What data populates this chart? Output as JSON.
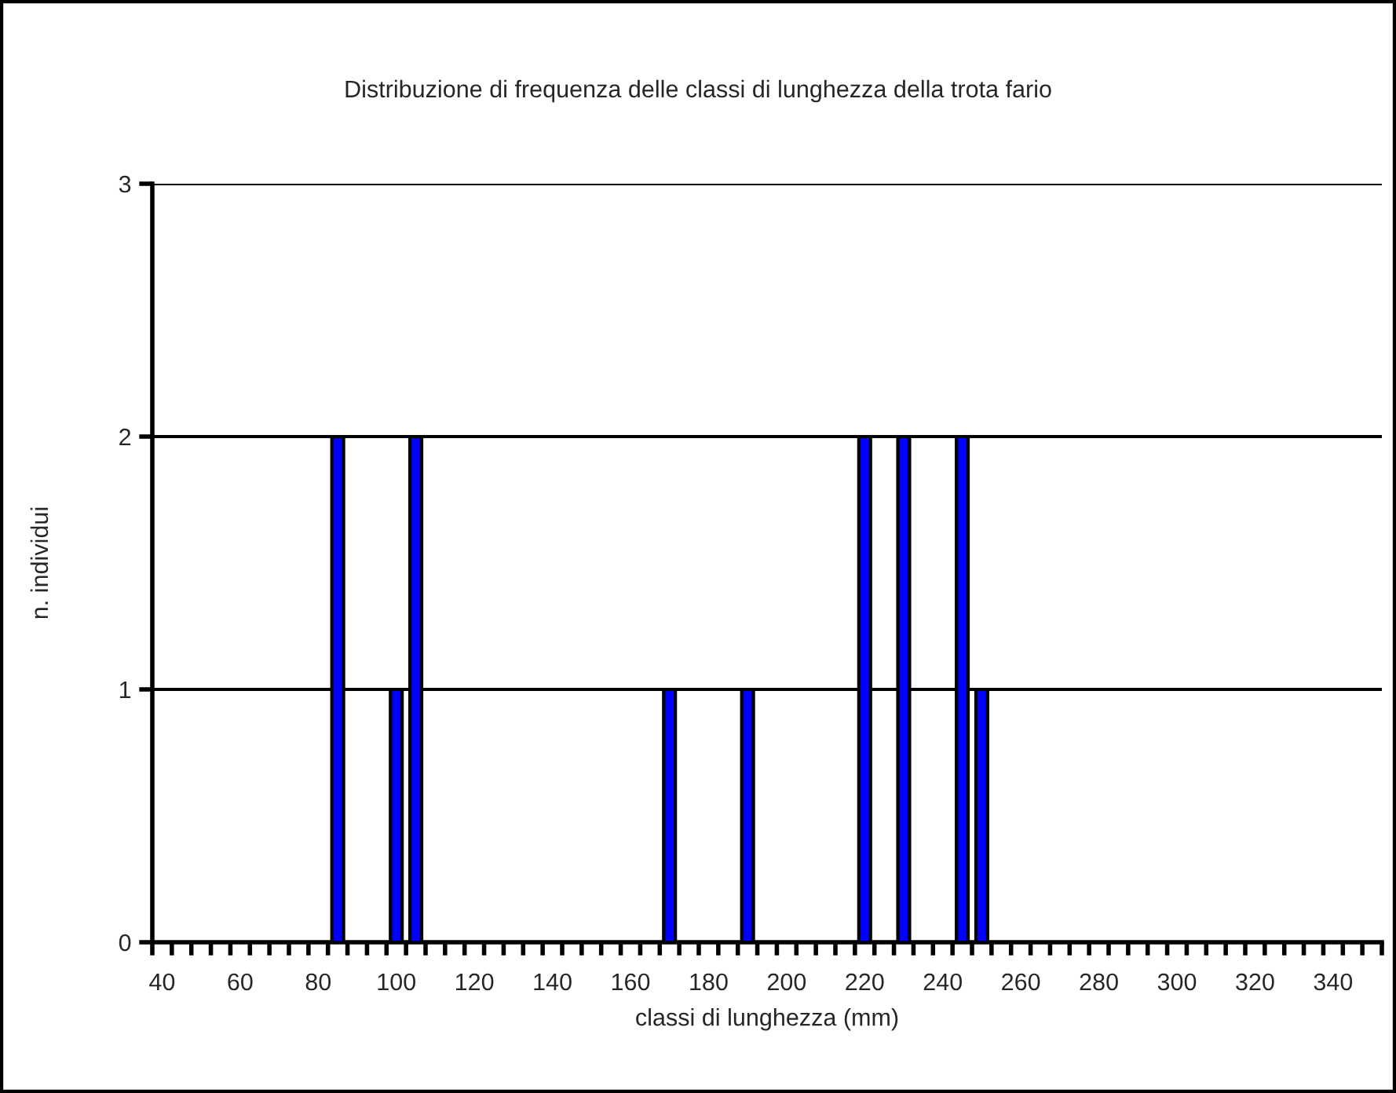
{
  "chart_data": {
    "type": "bar",
    "title": "Distribuzione di frequenza delle classi di lunghezza della trota fario",
    "xlabel": "classi di lunghezza (mm)",
    "ylabel": "n. individui",
    "categories": [
      "40",
      null,
      null,
      null,
      "60",
      null,
      null,
      null,
      "80",
      null,
      null,
      null,
      "100",
      null,
      null,
      null,
      "120",
      null,
      null,
      null,
      "140",
      null,
      null,
      null,
      "160",
      null,
      null,
      null,
      "180",
      null,
      null,
      null,
      "200",
      null,
      null,
      null,
      "220",
      null,
      null,
      null,
      "240",
      null,
      null,
      null,
      "260",
      null,
      null,
      null,
      "280",
      null,
      null,
      null,
      "300",
      null,
      null,
      null,
      "320",
      null,
      null,
      null,
      "340",
      null,
      null
    ],
    "values": [
      0,
      0,
      0,
      0,
      0,
      0,
      0,
      0,
      0,
      2,
      0,
      0,
      1,
      2,
      0,
      0,
      0,
      0,
      0,
      0,
      0,
      0,
      0,
      0,
      0,
      0,
      1,
      0,
      0,
      0,
      1,
      0,
      0,
      0,
      0,
      0,
      2,
      0,
      2,
      0,
      0,
      2,
      1,
      0,
      0,
      0,
      0,
      0,
      0,
      0,
      0,
      0,
      0,
      0,
      0,
      0,
      0,
      0,
      0,
      0,
      0,
      0,
      0
    ],
    "color": "#0000ff",
    "ylim": [
      0,
      3
    ],
    "yticks": [
      0,
      1,
      2,
      3
    ],
    "grid": "y",
    "legend": false
  }
}
